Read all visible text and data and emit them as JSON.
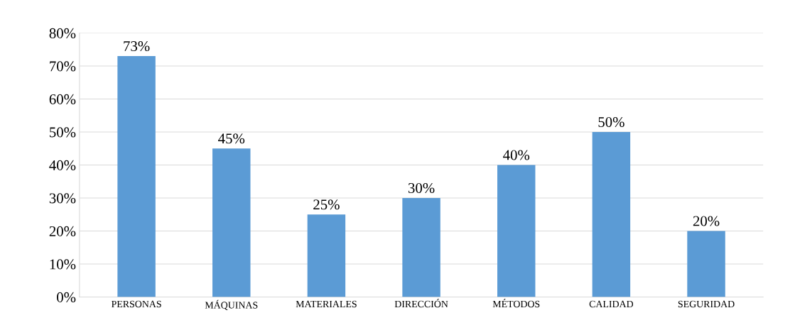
{
  "chart_data": {
    "type": "bar",
    "categories": [
      "PERSONAS",
      "MÁQUINAS",
      "MATERIALES",
      "DIRECCIÓN",
      "MÉTODOS",
      "CALIDAD",
      "SEGURIDAD"
    ],
    "values": [
      73,
      45,
      25,
      30,
      40,
      50,
      20
    ],
    "value_labels": [
      "73%",
      "45%",
      "25%",
      "30%",
      "40%",
      "50%",
      "20%"
    ],
    "color": "#5b9bd5",
    "ylim": [
      0,
      80
    ],
    "yticks": [
      {
        "value": 0,
        "label": "0%"
      },
      {
        "value": 10,
        "label": "10%"
      },
      {
        "value": 20,
        "label": "20%"
      },
      {
        "value": 30,
        "label": "30%"
      },
      {
        "value": 40,
        "label": "40%"
      },
      {
        "value": 50,
        "label": "50%"
      },
      {
        "value": 60,
        "label": "60%"
      },
      {
        "value": 70,
        "label": "70%"
      },
      {
        "value": 80,
        "label": "80%"
      }
    ],
    "grid": "y"
  }
}
